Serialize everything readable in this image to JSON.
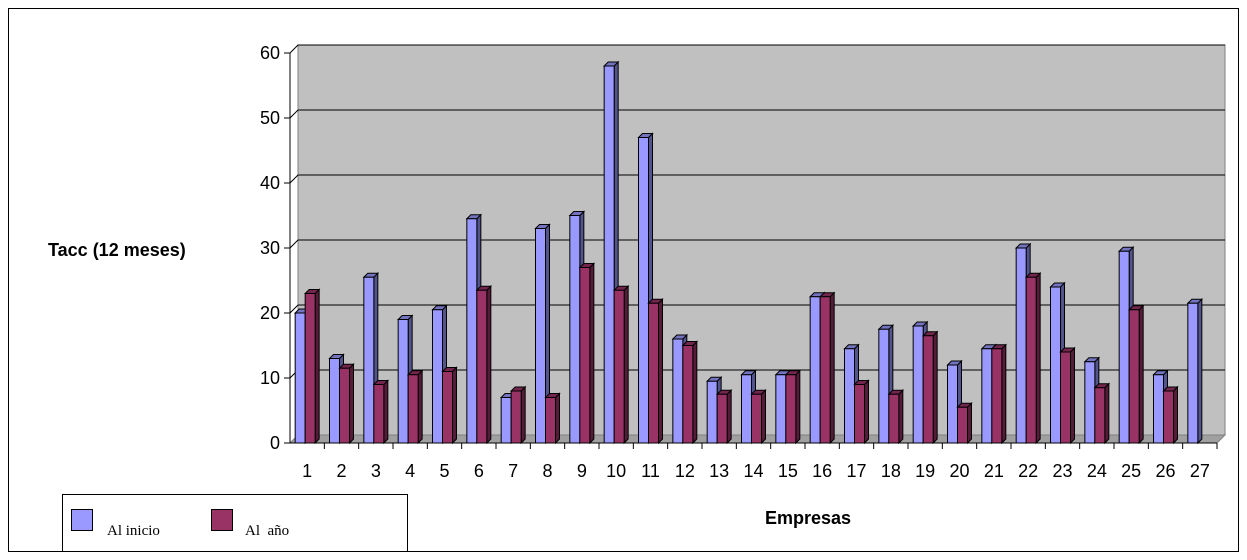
{
  "chart_data": {
    "type": "bar",
    "xlabel": "Empresas",
    "ylabel": "Tacc (12 meses)",
    "ylim": [
      0,
      60
    ],
    "yticks": [
      0,
      10,
      20,
      30,
      40,
      50,
      60
    ],
    "grid": true,
    "legend_placement": "bottom-left",
    "categories": [
      "1",
      "2",
      "3",
      "4",
      "5",
      "6",
      "7",
      "8",
      "9",
      "10",
      "11",
      "12",
      "13",
      "14",
      "15",
      "16",
      "17",
      "18",
      "19",
      "20",
      "21",
      "22",
      "23",
      "24",
      "25",
      "26",
      "27"
    ],
    "series": [
      {
        "name": "Al inicio",
        "color": "#9999ff",
        "values": [
          20,
          13,
          25.5,
          19,
          20.5,
          34.5,
          7,
          33,
          35,
          58,
          47,
          16,
          9.5,
          10.5,
          10.5,
          22.5,
          14.5,
          17.5,
          18,
          12,
          14.5,
          30,
          24,
          12.5,
          29.5,
          10.5,
          21.5
        ]
      },
      {
        "name": "Al  año",
        "color": "#993366",
        "values": [
          23,
          11.5,
          9,
          10.5,
          11,
          23.5,
          8,
          7,
          27,
          23.5,
          21.5,
          15,
          7.5,
          7.5,
          10.5,
          22.5,
          9,
          7.5,
          16.5,
          5.5,
          14.5,
          25.5,
          14,
          8.5,
          20.5,
          8,
          null
        ]
      }
    ],
    "plot_background": "#c0c0c0"
  }
}
